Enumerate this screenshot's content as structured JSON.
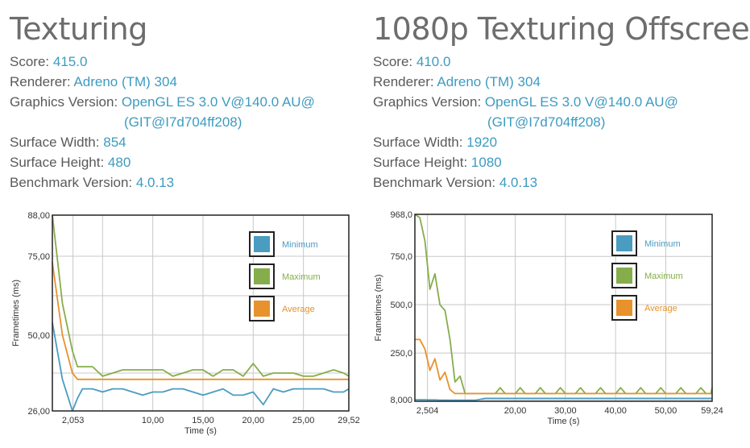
{
  "panels": [
    {
      "title": "Texturing",
      "fields": {
        "score_label": "Score:",
        "score": "415.0",
        "renderer_label": "Renderer:",
        "renderer": "Adreno (TM) 304",
        "gv_label": "Graphics Version:",
        "gv_line1": "OpenGL ES 3.0 V@140.0 AU@",
        "gv_line2": "(GIT@I7d704ff208)",
        "sw_label": "Surface Width:",
        "sw": "854",
        "sh_label": "Surface Height:",
        "sh": "480",
        "bv_label": "Benchmark Version:",
        "bv": "4.0.13"
      }
    },
    {
      "title": "1080p Texturing Offscreen",
      "fields": {
        "score_label": "Score:",
        "score": "410.0",
        "renderer_label": "Renderer:",
        "renderer": "Adreno (TM) 304",
        "gv_label": "Graphics Version:",
        "gv_line1": "OpenGL ES 3.0 V@140.0 AU@",
        "gv_line2": "(GIT@I7d704ff208)",
        "sw_label": "Surface Width:",
        "sw": "1920",
        "sh_label": "Surface Height:",
        "sh": "1080",
        "bv_label": "Benchmark Version:",
        "bv": "4.0.13"
      }
    }
  ],
  "colors": {
    "minimum": "#4a9cc0",
    "maximum": "#86ad4b",
    "average": "#e7922d",
    "value_text": "#3d9bc1"
  },
  "chart_data": [
    {
      "type": "line",
      "xlabel": "Time (s)",
      "ylabel": "Frametimes (ms)",
      "xlim": [
        0,
        29.52
      ],
      "ylim": [
        26,
        88
      ],
      "x_ticks": [
        "2,053",
        "10,00",
        "15,00",
        "20,00",
        "25,00",
        "29,52"
      ],
      "x_tick_values": [
        2.053,
        10,
        15,
        20,
        25,
        29.52
      ],
      "y_ticks": [
        "88,00",
        "75,00",
        "50,00",
        "26,00"
      ],
      "y_tick_values": [
        88,
        75,
        50,
        26
      ],
      "legend": {
        "placement": "right",
        "items": [
          "Minimum",
          "Maximum",
          "Average"
        ]
      },
      "x": [
        0,
        1,
        2,
        2.5,
        3,
        4,
        5,
        6,
        7,
        8,
        9,
        10,
        11,
        12,
        13,
        14,
        15,
        16,
        17,
        18,
        19,
        20,
        21,
        22,
        23,
        24,
        25,
        26,
        27,
        28,
        29,
        29.52
      ],
      "series": [
        {
          "name": "Minimum",
          "values": [
            54,
            36,
            26,
            30,
            33,
            33,
            32,
            33,
            33,
            32,
            31,
            32,
            32,
            33,
            33,
            32,
            31,
            32,
            33,
            31,
            31,
            32,
            28,
            33,
            32,
            33,
            33,
            33,
            33,
            32,
            32,
            33
          ]
        },
        {
          "name": "Maximum",
          "values": [
            88,
            60,
            45,
            40,
            40,
            40,
            37,
            38,
            39,
            39,
            39,
            39,
            39,
            37,
            38,
            39,
            39,
            37,
            39,
            39,
            37,
            41,
            37,
            38,
            38,
            38,
            37,
            37,
            38,
            39,
            38,
            37
          ]
        },
        {
          "name": "Average",
          "values": [
            73,
            50,
            38,
            36,
            36,
            36,
            36,
            36,
            36,
            36,
            36,
            36,
            36,
            36,
            36,
            36,
            36,
            36,
            36,
            36,
            36,
            36,
            36,
            36,
            36,
            36,
            36,
            36,
            36,
            36,
            36,
            36
          ]
        }
      ]
    },
    {
      "type": "line",
      "xlabel": "Time (s)",
      "ylabel": "Frametimes (ms)",
      "xlim": [
        0,
        59.24
      ],
      "ylim": [
        0,
        968
      ],
      "x_ticks": [
        "2,504",
        "20,00",
        "30,00",
        "40,00",
        "50,00",
        "59,24"
      ],
      "x_tick_values": [
        2.504,
        20,
        30,
        40,
        50,
        59.24
      ],
      "y_ticks": [
        "968,0",
        "750,0",
        "500,0",
        "250,0",
        "8,000"
      ],
      "y_tick_values": [
        968,
        750,
        500,
        250,
        8
      ],
      "legend": {
        "placement": "right",
        "items": [
          "Minimum",
          "Maximum",
          "Average"
        ]
      },
      "x": [
        0,
        1,
        2,
        3,
        4,
        5,
        6,
        7,
        8,
        9,
        10,
        11,
        12,
        13,
        14,
        15,
        16,
        17,
        18,
        19,
        20,
        21,
        22,
        23,
        24,
        25,
        26,
        27,
        28,
        29,
        30,
        31,
        32,
        33,
        34,
        35,
        36,
        37,
        38,
        39,
        40,
        41,
        42,
        43,
        44,
        45,
        46,
        47,
        48,
        49,
        50,
        51,
        52,
        53,
        54,
        55,
        56,
        57,
        58,
        59,
        59.24
      ],
      "series": [
        {
          "name": "Minimum",
          "values": [
            8,
            8,
            8,
            7,
            7,
            6,
            6,
            5,
            5,
            5,
            5,
            5,
            5,
            10,
            15,
            15,
            15,
            15,
            15,
            15,
            15,
            15,
            15,
            15,
            15,
            15,
            15,
            15,
            15,
            15,
            15,
            15,
            15,
            15,
            15,
            15,
            15,
            15,
            15,
            15,
            15,
            15,
            15,
            15,
            15,
            15,
            15,
            15,
            15,
            15,
            15,
            15,
            15,
            15,
            15,
            15,
            15,
            15,
            15,
            15,
            15
          ]
        },
        {
          "name": "Maximum",
          "values": [
            968,
            950,
            830,
            580,
            660,
            500,
            470,
            320,
            100,
            130,
            40,
            40,
            40,
            40,
            40,
            40,
            40,
            70,
            40,
            40,
            40,
            70,
            40,
            40,
            40,
            70,
            40,
            40,
            40,
            70,
            40,
            40,
            40,
            70,
            40,
            40,
            40,
            70,
            40,
            40,
            40,
            70,
            40,
            40,
            40,
            70,
            40,
            40,
            40,
            70,
            40,
            40,
            40,
            70,
            40,
            40,
            40,
            70,
            40,
            40,
            70
          ]
        },
        {
          "name": "Average",
          "values": [
            320,
            320,
            270,
            160,
            220,
            110,
            150,
            60,
            40,
            40,
            40,
            40,
            40,
            40,
            40,
            40,
            40,
            40,
            40,
            40,
            40,
            40,
            40,
            40,
            40,
            40,
            40,
            40,
            40,
            40,
            40,
            40,
            40,
            40,
            40,
            40,
            40,
            40,
            40,
            40,
            40,
            40,
            40,
            40,
            40,
            40,
            40,
            40,
            40,
            40,
            40,
            40,
            40,
            40,
            40,
            40,
            40,
            40,
            40,
            40,
            40
          ]
        }
      ]
    }
  ]
}
